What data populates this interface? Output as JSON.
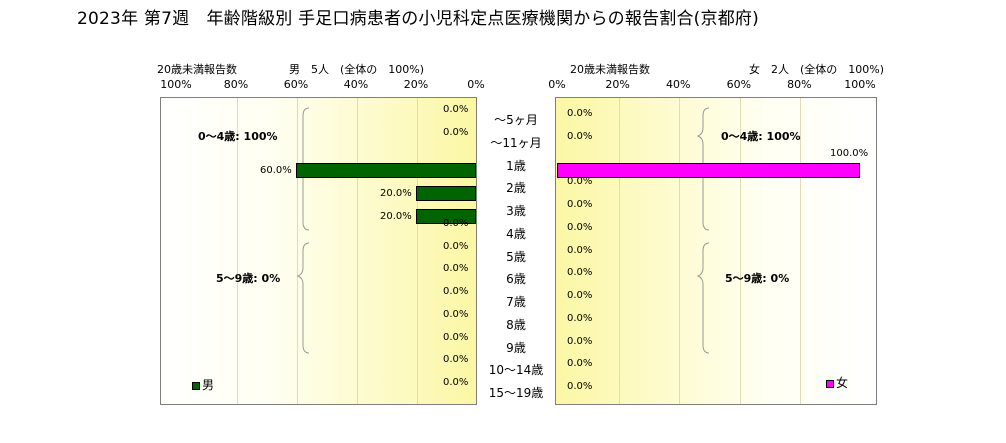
{
  "title": "2023年 第7週　年齢階級別 手足口病患者の小児科定点医療機関からの報告割合(京都府)",
  "left": {
    "under20": "20歳未満報告数",
    "sex_label": "男　5人　(全体の　100%)",
    "ticks": [
      "100%",
      "80%",
      "60%",
      "40%",
      "20%",
      "0%"
    ],
    "brace_0_4": "0～4歳: 100%",
    "brace_5_9": "5～9歳: 0%",
    "legend": "男"
  },
  "right": {
    "under20": "20歳未満報告数",
    "sex_label": "女　2人　(全体の　100%)",
    "ticks": [
      "0%",
      "20%",
      "40%",
      "60%",
      "80%",
      "100%"
    ],
    "brace_0_4": "0～4歳: 100%",
    "brace_5_9": "5～9歳: 0%",
    "legend": "女"
  },
  "colors": {
    "male": "#006400",
    "female": "#ff00ff"
  },
  "chart_data": {
    "type": "bar",
    "title": "2023年 第7週　年齢階級別 手足口病患者の小児科定点医療機関からの報告割合(京都府)",
    "categories": [
      "～5ヶ月",
      "～11ヶ月",
      "1歳",
      "2歳",
      "3歳",
      "4歳",
      "5歳",
      "6歳",
      "7歳",
      "8歳",
      "9歳",
      "10～14歳",
      "15～19歳"
    ],
    "series": [
      {
        "name": "男",
        "values": [
          0,
          0,
          60,
          20,
          20,
          0,
          0,
          0,
          0,
          0,
          0,
          0,
          0
        ],
        "labels": [
          "0.0%",
          "0.0%",
          "60.0%",
          "20.0%",
          "20.0%",
          "0.0%",
          "0.0%",
          "0.0%",
          "0.0%",
          "0.0%",
          "0.0%",
          "0.0%",
          "0.0%"
        ]
      },
      {
        "name": "女",
        "values": [
          0,
          0,
          100,
          0,
          0,
          0,
          0,
          0,
          0,
          0,
          0,
          0,
          0
        ],
        "labels": [
          "0.0%",
          "0.0%",
          "100.0%",
          "0.0%",
          "0.0%",
          "0.0%",
          "0.0%",
          "0.0%",
          "0.0%",
          "0.0%",
          "0.0%",
          "0.0%",
          "0.0%"
        ]
      }
    ],
    "xlim": [
      0,
      100
    ],
    "xlabel": "",
    "ylabel": "",
    "grid": true,
    "legend_position": "bottom"
  }
}
